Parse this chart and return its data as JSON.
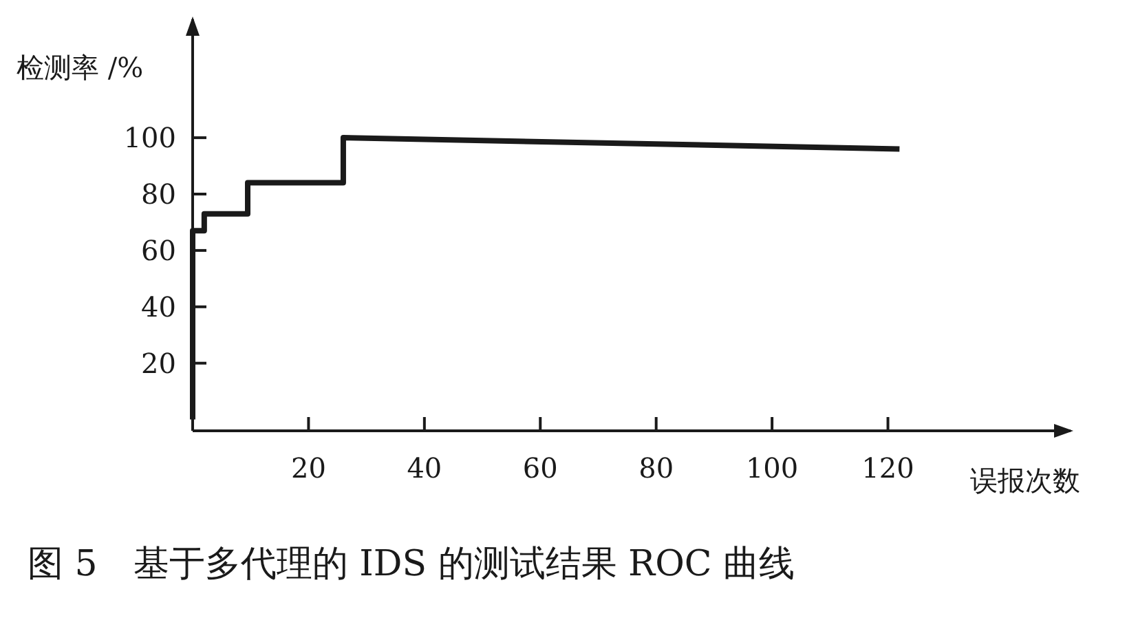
{
  "chart_data": {
    "type": "line",
    "title": "图 5　基于多代理的 IDS 的测试结果 ROC 曲线",
    "xlabel": "误报次数",
    "ylabel": "检测率 /%",
    "x": [
      0,
      0,
      2,
      2,
      9.5,
      9.5,
      26,
      26,
      122
    ],
    "values": [
      0,
      67,
      67,
      73,
      73,
      84,
      84,
      100,
      96
    ],
    "color": "#1a1a1a",
    "xlim": [
      0,
      152
    ],
    "ylim": [
      -4,
      143
    ],
    "xticks": [
      20,
      40,
      60,
      80,
      100,
      120
    ],
    "yticks": [
      20,
      40,
      60,
      80,
      100
    ],
    "marker": "none",
    "line_style": "solid"
  }
}
